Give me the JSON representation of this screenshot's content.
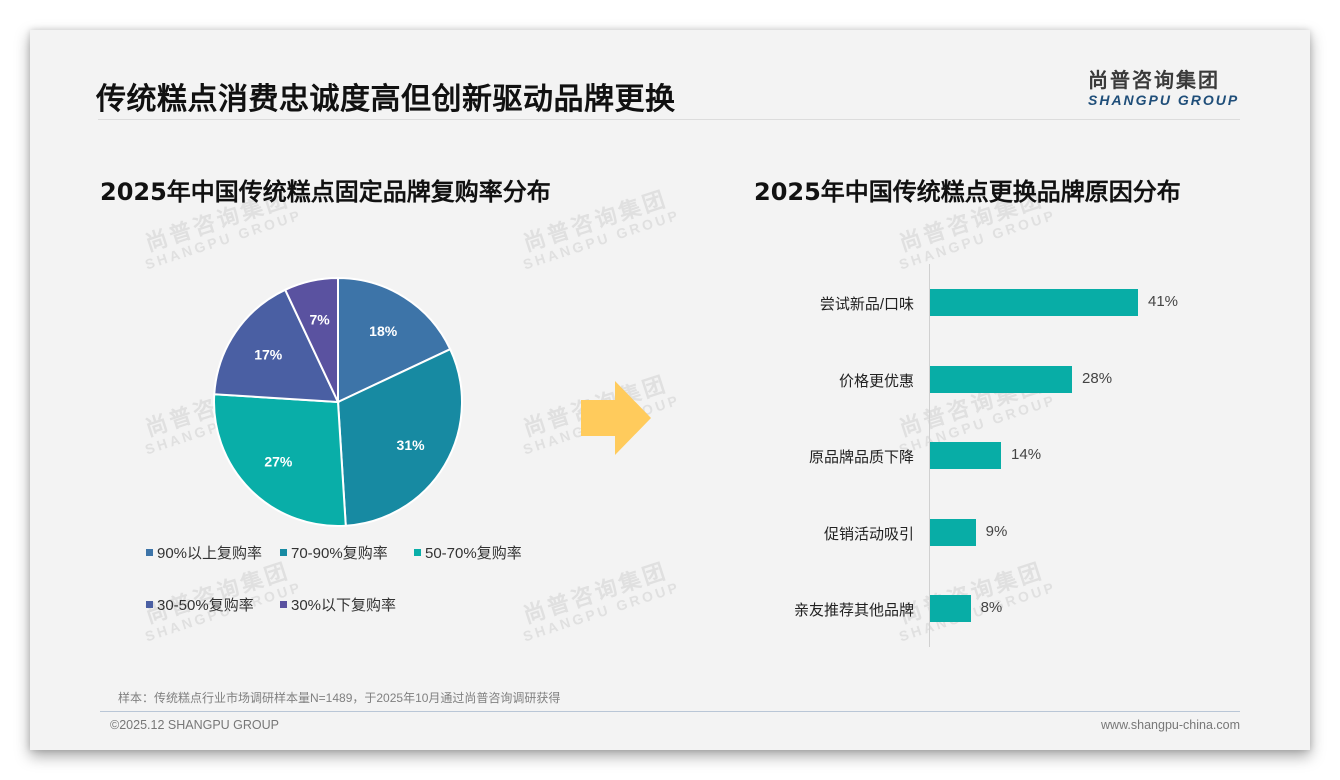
{
  "header": {
    "title": "传统糕点消费忠诚度高但创新驱动品牌更换",
    "logo_cn": "尚普咨询集团",
    "logo_en": "SHANGPU GROUP"
  },
  "watermark": {
    "cn": "尚普咨询集团",
    "en": "SHANGPU GROUP"
  },
  "left_section": {
    "title": "2025年中国传统糕点固定品牌复购率分布"
  },
  "right_section": {
    "title": "2025年中国传统糕点更换品牌原因分布"
  },
  "chart_data": [
    {
      "type": "pie",
      "title": "2025年中国传统糕点固定品牌复购率分布",
      "categories": [
        "90%以上复购率",
        "70-90%复购率",
        "50-70%复购率",
        "30-50%复购率",
        "30%以下复购率"
      ],
      "values": [
        18,
        31,
        27,
        17,
        7
      ],
      "labels": [
        "18%",
        "31%",
        "27%",
        "17%",
        "7%"
      ],
      "colors": [
        "#3d74a8",
        "#178aa2",
        "#09aea8",
        "#4a5fa3",
        "#5a52a0"
      ],
      "legend_position": "bottom",
      "start_angle": "12 o'clock, clockwise"
    },
    {
      "type": "bar",
      "orientation": "horizontal",
      "title": "2025年中国传统糕点更换品牌原因分布",
      "categories": [
        "尝试新品/口味",
        "价格更优惠",
        "原品牌品质下降",
        "促销活动吸引",
        "亲友推荐其他品牌"
      ],
      "values": [
        41,
        28,
        14,
        9,
        8
      ],
      "labels": [
        "41%",
        "28%",
        "14%",
        "9%",
        "8%"
      ],
      "color": "#08ada6",
      "xlabel": "",
      "ylabel": "",
      "grid": false,
      "unit": "%"
    }
  ],
  "legend": {
    "items": [
      {
        "label": "90%以上复购率",
        "color": "#3d74a8"
      },
      {
        "label": "70-90%复购率",
        "color": "#178aa2"
      },
      {
        "label": "50-70%复购率",
        "color": "#09aea8"
      },
      {
        "label": "30-50%复购率",
        "color": "#4a5fa3"
      },
      {
        "label": "30%以下复购率",
        "color": "#5a52a0"
      }
    ]
  },
  "arrow": {
    "color": "#ffcb5c"
  },
  "footer": {
    "sample_note": "样本：传统糕点行业市场调研样本量N=1489，于2025年10月通过尚普咨询调研获得",
    "copyright": "©2025.12 SHANGPU GROUP",
    "website": "www.shangpu-china.com"
  }
}
